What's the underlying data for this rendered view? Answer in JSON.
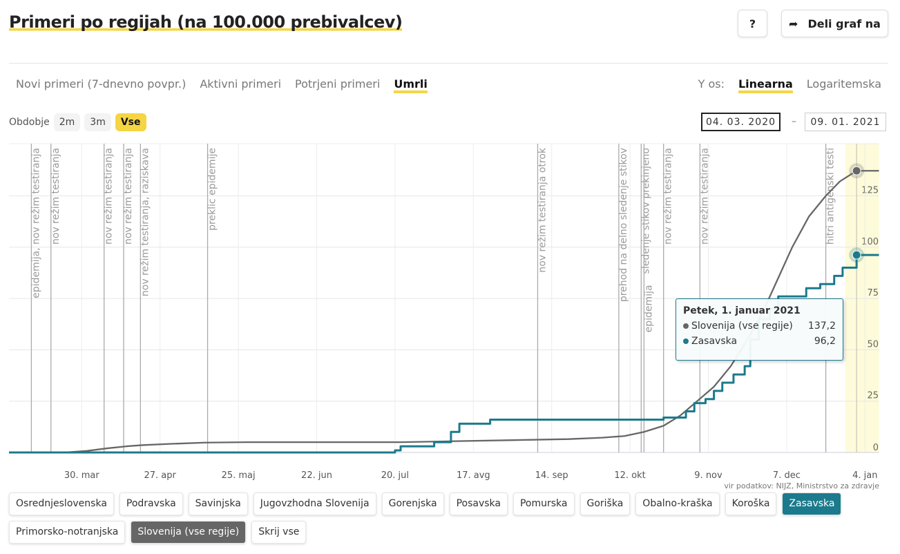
{
  "header": {
    "title": "Primeri po regijah (na 100.000 prebivalcev)",
    "help_label": "?",
    "share_label": "Deli graf na"
  },
  "tabs": [
    {
      "label": "Novi primeri (7-dnevno povpr.)",
      "active": false
    },
    {
      "label": "Aktivni primeri",
      "active": false
    },
    {
      "label": "Potrjeni primeri",
      "active": false
    },
    {
      "label": "Umrli",
      "active": true
    }
  ],
  "y_axis_toggle": {
    "label": "Y os:",
    "options": [
      {
        "label": "Linearna",
        "active": true
      },
      {
        "label": "Logaritemska",
        "active": false
      }
    ]
  },
  "period": {
    "label": "Obdobje",
    "options": [
      {
        "label": "2m",
        "active": false
      },
      {
        "label": "3m",
        "active": false
      },
      {
        "label": "Vse",
        "active": true
      }
    ]
  },
  "date_range": {
    "from": "04. 03. 2020",
    "separator": "–",
    "to": "09. 01. 2021"
  },
  "tooltip": {
    "title": "Petek, 1. januar 2021",
    "rows": [
      {
        "name": "Slovenija (vse regije)",
        "value": "137,2",
        "color": "#666666"
      },
      {
        "name": "Zasavska",
        "value": "96,2",
        "color": "#1b7a8c"
      }
    ]
  },
  "source": "vir podatkov: NIJZ, Ministrstvo za zdravje",
  "regions": [
    {
      "label": "Osrednjeslovenska",
      "state": "off"
    },
    {
      "label": "Podravska",
      "state": "off"
    },
    {
      "label": "Savinjska",
      "state": "off"
    },
    {
      "label": "Jugovzhodna Slovenija",
      "state": "off"
    },
    {
      "label": "Gorenjska",
      "state": "off"
    },
    {
      "label": "Posavska",
      "state": "off"
    },
    {
      "label": "Pomurska",
      "state": "off"
    },
    {
      "label": "Goriška",
      "state": "off"
    },
    {
      "label": "Obalno-kraška",
      "state": "off"
    },
    {
      "label": "Koroška",
      "state": "off"
    },
    {
      "label": "Zasavska",
      "state": "teal"
    },
    {
      "label": "Primorsko-notranjska",
      "state": "off"
    },
    {
      "label": "Slovenija (vse regije)",
      "state": "grey"
    },
    {
      "label": "Skrij vse",
      "state": "off"
    }
  ],
  "chart_data": {
    "type": "line",
    "title": "Primeri po regijah (na 100.000 prebivalcev) – Umrli",
    "x_start": "2020-03-04",
    "x_end": "2021-01-09",
    "ylim": [
      0,
      145
    ],
    "y_ticks": [
      0,
      25,
      50,
      75,
      100,
      125
    ],
    "x_ticks": [
      {
        "date": "2020-03-30",
        "label": "30. mar"
      },
      {
        "date": "2020-04-27",
        "label": "27. apr"
      },
      {
        "date": "2020-05-25",
        "label": "25. maj"
      },
      {
        "date": "2020-06-22",
        "label": "22. jun"
      },
      {
        "date": "2020-07-20",
        "label": "20. jul"
      },
      {
        "date": "2020-08-17",
        "label": "17. avg"
      },
      {
        "date": "2020-09-14",
        "label": "14. sep"
      },
      {
        "date": "2020-10-12",
        "label": "12. okt"
      },
      {
        "date": "2020-11-09",
        "label": "9. nov"
      },
      {
        "date": "2020-12-07",
        "label": "7. dec"
      },
      {
        "date": "2021-01-04",
        "label": "4. jan"
      }
    ],
    "highlight": {
      "from": "2020-12-28",
      "to": "2021-01-09",
      "hover": "2021-01-01"
    },
    "series": [
      {
        "name": "Slovenija (vse regije)",
        "color": "#666666",
        "step": false,
        "points": [
          [
            0,
            0
          ],
          [
            20,
            0
          ],
          [
            28,
            0.8
          ],
          [
            35,
            2
          ],
          [
            42,
            3
          ],
          [
            48,
            3.6
          ],
          [
            58,
            4.2
          ],
          [
            70,
            4.8
          ],
          [
            85,
            5
          ],
          [
            140,
            5
          ],
          [
            160,
            5.5
          ],
          [
            180,
            6
          ],
          [
            200,
            6.5
          ],
          [
            212,
            7.2
          ],
          [
            220,
            8
          ],
          [
            227,
            10
          ],
          [
            234,
            13
          ],
          [
            240,
            18
          ],
          [
            246,
            25
          ],
          [
            252,
            32
          ],
          [
            258,
            42
          ],
          [
            264,
            55
          ],
          [
            270,
            70
          ],
          [
            275,
            85
          ],
          [
            280,
            100
          ],
          [
            286,
            115
          ],
          [
            292,
            125
          ],
          [
            297,
            132
          ],
          [
            303,
            137.2
          ],
          [
            311,
            137.2
          ]
        ]
      },
      {
        "name": "Zasavska",
        "color": "#1b7a8c",
        "step": true,
        "points": [
          [
            0,
            0
          ],
          [
            137,
            0
          ],
          [
            138,
            1
          ],
          [
            140,
            3
          ],
          [
            151,
            3
          ],
          [
            152,
            5
          ],
          [
            156,
            5
          ],
          [
            158,
            10
          ],
          [
            161,
            14
          ],
          [
            171,
            14
          ],
          [
            172,
            16
          ],
          [
            233,
            16
          ],
          [
            234,
            17
          ],
          [
            241,
            17
          ],
          [
            242,
            20
          ],
          [
            245,
            24
          ],
          [
            249,
            26
          ],
          [
            252,
            30
          ],
          [
            255,
            34
          ],
          [
            259,
            38
          ],
          [
            263,
            42
          ],
          [
            265,
            55
          ],
          [
            268,
            65
          ],
          [
            272,
            70
          ],
          [
            275,
            76
          ],
          [
            282,
            76
          ],
          [
            285,
            80
          ],
          [
            290,
            82
          ],
          [
            295,
            86
          ],
          [
            298,
            90
          ],
          [
            303,
            96.2
          ],
          [
            311,
            96.2
          ]
        ]
      }
    ],
    "annotations": [
      {
        "date": "2020-03-12",
        "label": "epidemija, nov režim testiranja"
      },
      {
        "date": "2020-03-19",
        "label": "nov režim testiranja"
      },
      {
        "date": "2020-04-07",
        "label": "nov režim testiranja"
      },
      {
        "date": "2020-04-14",
        "label": "nov režim testiranja"
      },
      {
        "date": "2020-04-20",
        "label": "nov režim testiranja, raziskava"
      },
      {
        "date": "2020-05-14",
        "label": "preklic epidemije"
      },
      {
        "date": "2020-09-09",
        "label": "nov režim testiranja otrok"
      },
      {
        "date": "2020-10-08",
        "label": "prehod na delno sledenje stikov"
      },
      {
        "date": "2020-10-16",
        "label": "sledenje stikov prekinjeno"
      },
      {
        "date": "2020-10-17",
        "label": "epidemija"
      },
      {
        "date": "2020-10-24",
        "label": "nov režim testiranja"
      },
      {
        "date": "2020-11-06",
        "label": "nov režim testiranja"
      },
      {
        "date": "2020-12-21",
        "label": "hitri antigenski testi"
      }
    ]
  }
}
